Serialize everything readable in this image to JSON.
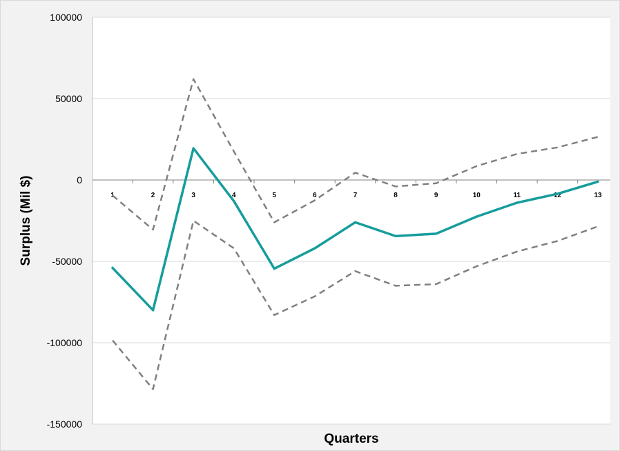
{
  "chart_data": {
    "type": "line",
    "title": "",
    "xlabel": "Quarters",
    "ylabel": "Surplus (Mil $)",
    "categories": [
      "1",
      "2",
      "3",
      "4",
      "5",
      "6",
      "7",
      "8",
      "9",
      "10",
      "11",
      "12",
      "13"
    ],
    "ylim": [
      -150000,
      100000
    ],
    "yticks": [
      100000,
      50000,
      0,
      -50000,
      -100000,
      -150000
    ],
    "grid": true,
    "legend": "none",
    "series": [
      {
        "style": "solid",
        "color": "#169c9c",
        "values": [
          -54000,
          -80000,
          19500,
          -13000,
          -54500,
          -42000,
          -26000,
          -34500,
          -33000,
          -22500,
          -14000,
          -8500,
          -1000
        ]
      },
      {
        "style": "dashed",
        "color": "#808080",
        "values": [
          -9500,
          -30500,
          62000,
          17500,
          -26000,
          -12500,
          4500,
          -4000,
          -2000,
          8500,
          16000,
          20000,
          26500
        ]
      },
      {
        "style": "dashed",
        "color": "#808080",
        "values": [
          -98500,
          -128500,
          -25000,
          -42000,
          -83000,
          -71500,
          -56000,
          -65000,
          -64000,
          -53000,
          -44000,
          -37500,
          -28500
        ]
      }
    ]
  }
}
